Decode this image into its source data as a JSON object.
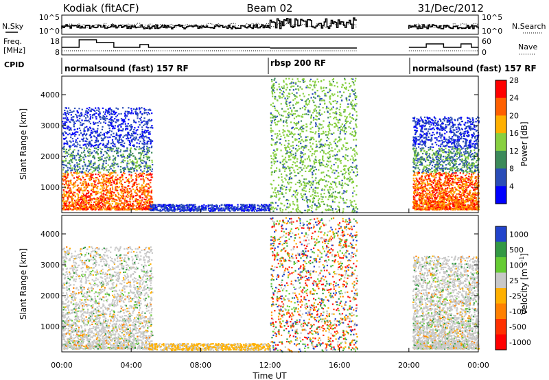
{
  "header": {
    "station": "Kodiak (fitACF)",
    "beam": "Beam 02",
    "date": "31/Dec/2012"
  },
  "noise_panel": {
    "left_label": "N.Sky",
    "right_label": "N.Search",
    "left_ticks": [
      "10^5",
      "10^0"
    ],
    "right_ticks": [
      "10^5",
      "10^0"
    ]
  },
  "freq_panel": {
    "left_label_1": "Freq.",
    "left_label_2": "[MHz]",
    "right_label": "Nave",
    "left_ticks": [
      "18",
      "8"
    ],
    "right_ticks": [
      "60",
      "0"
    ]
  },
  "cpid": {
    "label": "CPID",
    "segments": [
      {
        "name": "normalsound (fast) 157 RF",
        "start_hour": 0
      },
      {
        "name": "rbsp 200 RF",
        "start_hour": 12
      },
      {
        "name": "normalsound (fast) 157 RF",
        "start_hour": 20
      }
    ]
  },
  "chart_data": [
    {
      "type": "heatmap",
      "quantity": "power",
      "ylabel": "Slant Range [km]",
      "ylim": [
        180,
        4600
      ],
      "y_ticks": [
        "1000",
        "2000",
        "3000",
        "4000"
      ],
      "colorbar_label": "Power [dB]",
      "colorbar_ticks": [
        "4",
        "8",
        "12",
        "16",
        "20",
        "24",
        "28"
      ],
      "colorbar_colors": [
        "#0000ff",
        "#2a4db8",
        "#3c8a5a",
        "#88d040",
        "#ffb000",
        "#ff6000",
        "#ff0000"
      ],
      "regions": [
        {
          "hours": [
            0,
            5.5
          ],
          "range_km": [
            180,
            3600
          ],
          "dominant": "20-28 dB below 1500 km"
        },
        {
          "hours": [
            5.5,
            12
          ],
          "range_km": [
            180,
            500
          ],
          "dominant": "4-8 dB"
        },
        {
          "hours": [
            12,
            17
          ],
          "range_km": [
            180,
            4600
          ],
          "dominant": "12-16 dB"
        },
        {
          "hours": [
            20,
            24
          ],
          "range_km": [
            180,
            3300
          ],
          "dominant": "20-28 dB below 1500 km"
        }
      ]
    },
    {
      "type": "heatmap",
      "quantity": "velocity",
      "xlabel": "Time UT",
      "x_ticks": [
        "00:00",
        "04:00",
        "08:00",
        "12:00",
        "16:00",
        "20:00",
        "00:00"
      ],
      "xlim_hours": [
        0,
        24
      ],
      "ylabel": "Slant Range [km]",
      "ylim": [
        180,
        4600
      ],
      "y_ticks": [
        "1000",
        "2000",
        "3000",
        "4000"
      ],
      "colorbar_label_main": "Velocity",
      "colorbar_label_unit": "[m s",
      "colorbar_label_exp": "-1",
      "colorbar_ticks": [
        "1000",
        "500",
        "100",
        "25",
        "-25",
        "-100",
        "-500",
        "-1000"
      ],
      "colorbar_colors": [
        "#2244cc",
        "#339944",
        "#66cc33",
        "#c8c8c8",
        "#ffb000",
        "#ff8000",
        "#ff3000",
        "#ff0000"
      ],
      "regions": [
        {
          "hours": [
            0,
            5.5
          ],
          "range_km": [
            180,
            3600
          ],
          "dominant": "-25 to 25 m/s"
        },
        {
          "hours": [
            5.5,
            12
          ],
          "range_km": [
            180,
            500
          ],
          "dominant": "-100 to -25 m/s"
        },
        {
          "hours": [
            12,
            17
          ],
          "range_km": [
            180,
            4600
          ],
          "dominant": "mixed"
        },
        {
          "hours": [
            20,
            24
          ],
          "range_km": [
            180,
            3300
          ],
          "dominant": "-25 to 25 m/s"
        }
      ]
    }
  ]
}
